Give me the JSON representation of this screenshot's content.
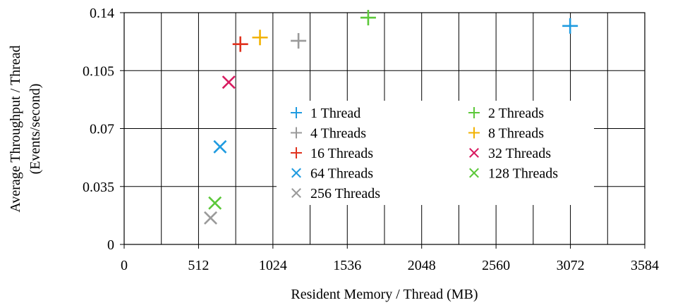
{
  "chart_data": {
    "type": "scatter",
    "xlabel": "Resident Memory / Thread (MB)",
    "ylabel_line1": "Average Throughput / Thread",
    "ylabel_line2": "(Events/second)",
    "xlim": [
      0,
      3584
    ],
    "ylim": [
      0,
      0.14
    ],
    "x_ticks": [
      "0",
      "512",
      "1024",
      "1536",
      "2048",
      "2560",
      "3072",
      "3584"
    ],
    "y_ticks": [
      "0",
      "0.035",
      "0.07",
      "0.105",
      "0.14"
    ],
    "x_tick_values": [
      0,
      512,
      1024,
      1536,
      2048,
      2560,
      3072,
      3584
    ],
    "y_tick_values": [
      0,
      0.035,
      0.07,
      0.105,
      0.14
    ],
    "x_grid_values": [
      256,
      512,
      768,
      1024,
      1280,
      1536,
      1792,
      2048,
      2304,
      2560,
      2816,
      3072,
      3328
    ],
    "grid": true,
    "legend_position": "center",
    "series": [
      {
        "name": "1 Thread",
        "marker": "plus",
        "color": "#1f9be0",
        "x": 3070,
        "y": 0.132
      },
      {
        "name": "2 Threads",
        "marker": "plus",
        "color": "#5cc83a",
        "x": 1680,
        "y": 0.137
      },
      {
        "name": "4 Threads",
        "marker": "plus",
        "color": "#9a9a9a",
        "x": 1200,
        "y": 0.123
      },
      {
        "name": "8 Threads",
        "marker": "plus",
        "color": "#f2b200",
        "x": 935,
        "y": 0.125
      },
      {
        "name": "16 Threads",
        "marker": "plus",
        "color": "#e0321e",
        "x": 800,
        "y": 0.121
      },
      {
        "name": "32 Threads",
        "marker": "cross",
        "color": "#d81b60",
        "x": 720,
        "y": 0.098
      },
      {
        "name": "64 Threads",
        "marker": "cross",
        "color": "#1f9be0",
        "x": 660,
        "y": 0.059
      },
      {
        "name": "128 Threads",
        "marker": "cross",
        "color": "#5cc83a",
        "x": 625,
        "y": 0.025
      },
      {
        "name": "256 Threads",
        "marker": "cross",
        "color": "#9a9a9a",
        "x": 595,
        "y": 0.016
      }
    ]
  }
}
